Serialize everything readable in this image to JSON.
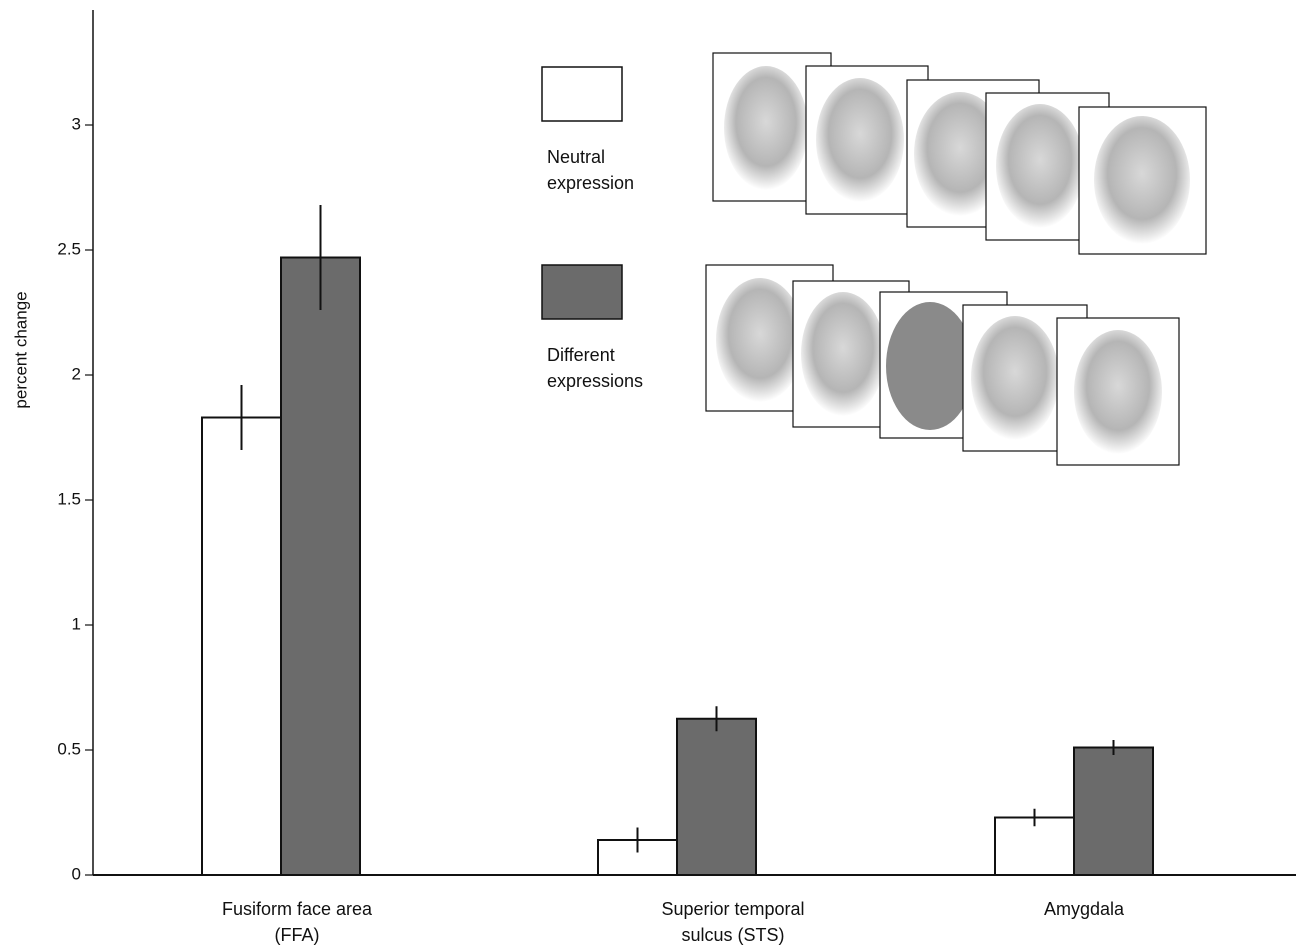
{
  "chart_data": {
    "type": "bar",
    "y_label": "percent change",
    "categories": [
      "Fusiform face area (FFA)",
      "Superior temporal sulcus (STS)",
      "Amygdala"
    ],
    "series": [
      {
        "name": "Neutral expression",
        "color": "#ffffff",
        "values": [
          1.83,
          0.14,
          0.23
        ],
        "errors": [
          0.13,
          0.05,
          0.035
        ]
      },
      {
        "name": "Different expressions",
        "color": "#6b6b6b",
        "values": [
          2.47,
          0.625,
          0.51
        ],
        "errors": [
          0.21,
          0.05,
          0.03
        ]
      }
    ],
    "ylim": [
      0,
      3.46
    ],
    "yticks": [
      0,
      0.5,
      1,
      1.5,
      2,
      2.5,
      3
    ],
    "grid": false
  }
}
